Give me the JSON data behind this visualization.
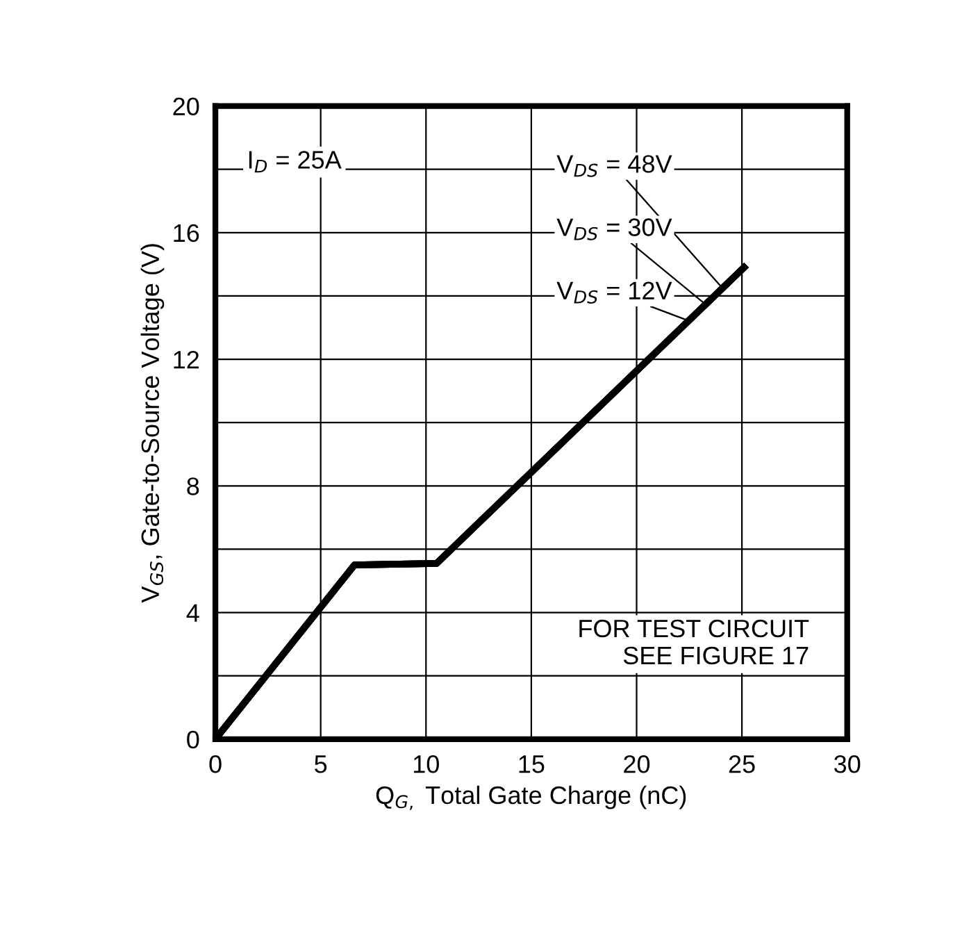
{
  "chart_data": {
    "type": "line",
    "xlabel": "Q$_{G,}$ Total Gate Charge (nC)",
    "ylabel": "V$_{GS}$, Gate-to-Source Voltage (V)",
    "x": [
      0,
      6.6,
      10.5,
      25.1
    ],
    "series": [
      {
        "name": "V$_{DS}$ = 48V",
        "color": "#000000",
        "values": [
          0,
          5.5,
          5.55,
          14.9
        ]
      },
      {
        "name": "V$_{DS}$ = 30V",
        "color": "#000000",
        "values": [
          0,
          5.5,
          5.55,
          14.9
        ]
      },
      {
        "name": "V$_{DS}$ = 12V",
        "color": "#000000",
        "values": [
          0,
          5.5,
          5.55,
          14.9
        ]
      }
    ],
    "xlim": [
      0,
      30
    ],
    "xticks": [
      0,
      5,
      10,
      15,
      20,
      25,
      30
    ],
    "ylim": [
      0,
      20
    ],
    "yticks": [
      0,
      4,
      8,
      12,
      16,
      20
    ],
    "grid": true,
    "legend": false,
    "marker": "none",
    "line_style": "solid",
    "annotations": [
      "I$_{D}$ = 25A",
      "FOR TEST CIRCUIT\n SEE FIGURE 17"
    ]
  }
}
